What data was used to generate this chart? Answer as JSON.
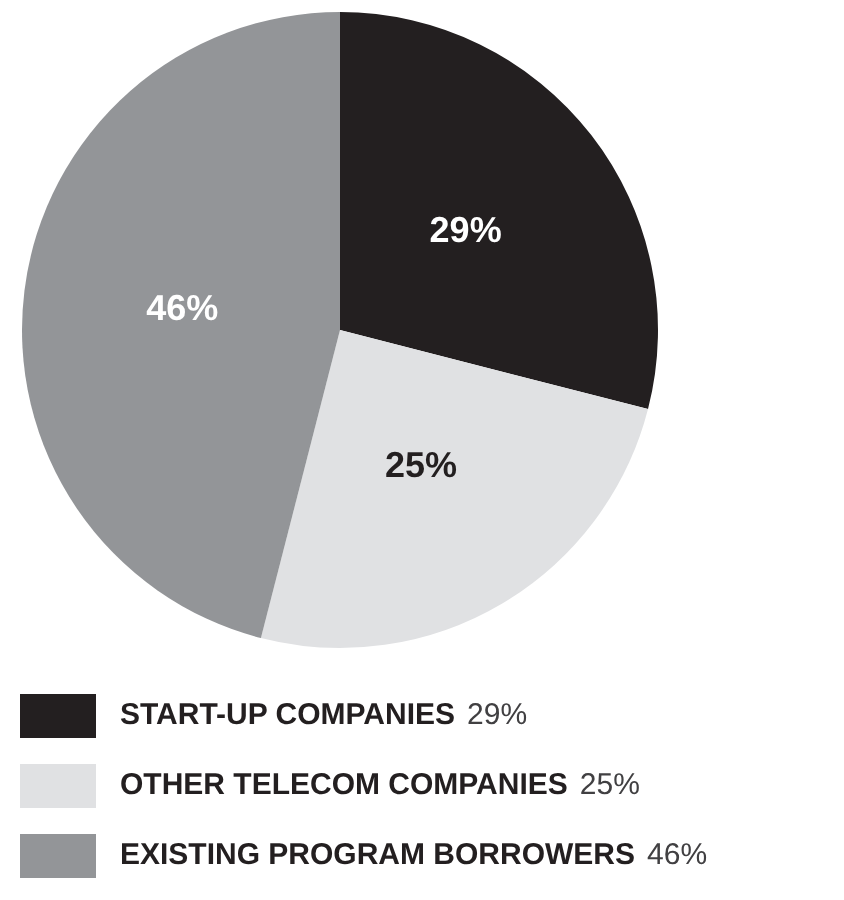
{
  "chart_data": {
    "type": "pie",
    "categories": [
      "START-UP COMPANIES",
      "OTHER TELECOM COMPANIES",
      "EXISTING PROGRAM BORROWERS"
    ],
    "values": [
      29,
      25,
      46
    ],
    "colors": [
      "#231f20",
      "#e0e1e3",
      "#939598"
    ],
    "value_labels": [
      "29%",
      "25%",
      "46%"
    ],
    "legend": "bottom"
  }
}
